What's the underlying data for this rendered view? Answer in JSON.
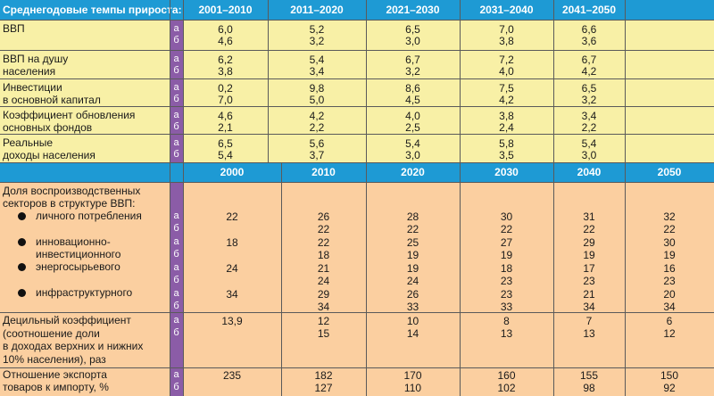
{
  "colors": {
    "header": "#1E9AD4",
    "yellow": "#F8F0A6",
    "peach": "#FBCFA0",
    "ab": "#8B5CA7"
  },
  "header1": {
    "label": "Среднегодовые темпы прироста:",
    "periods": [
      "2001–2010",
      "2011–2020",
      "2021–2030",
      "2031–2040",
      "2041–2050"
    ]
  },
  "growth_rows": [
    {
      "label": [
        "ВВП"
      ],
      "a": [
        "6,0",
        "5,2",
        "6,5",
        "7,0",
        "6,6"
      ],
      "b": [
        "4,6",
        "3,2",
        "3,0",
        "3,8",
        "3,6"
      ]
    },
    {
      "label": [
        "ВВП на душу",
        "населения"
      ],
      "a": [
        "6,2",
        "5,4",
        "6,7",
        "7,2",
        "6,7"
      ],
      "b": [
        "3,8",
        "3,4",
        "3,2",
        "4,0",
        "4,2"
      ]
    },
    {
      "label": [
        "Инвестиции",
        "в основной капитал"
      ],
      "a": [
        "0,2",
        "9,8",
        "8,6",
        "7,5",
        "6,5"
      ],
      "b": [
        "7,0",
        "5,0",
        "4,5",
        "4,2",
        "3,2"
      ]
    },
    {
      "label": [
        "Коэффициент обновления",
        "основных фондов"
      ],
      "a": [
        "4,6",
        "4,2",
        "4,0",
        "3,8",
        "3,4"
      ],
      "b": [
        "2,1",
        "2,2",
        "2,5",
        "2,4",
        "2,2"
      ]
    },
    {
      "label": [
        "Реальные",
        "доходы населения"
      ],
      "a": [
        "6,5",
        "5,6",
        "5,4",
        "5,8",
        "5,4"
      ],
      "b": [
        "5,4",
        "3,7",
        "3,0",
        "3,5",
        "3,0"
      ]
    }
  ],
  "ab_letters": {
    "a": "а",
    "b": "б"
  },
  "header2": {
    "years": [
      "2000",
      "2010",
      "2020",
      "2030",
      "2040",
      "2050"
    ]
  },
  "sectors": {
    "title": [
      "Доля воспроизводственных",
      "секторов в структуре ВВП:"
    ],
    "items": [
      {
        "label": [
          "личного потребления"
        ],
        "bullet": true,
        "a": [
          "22",
          "26",
          "28",
          "30",
          "31",
          "32"
        ],
        "b": [
          "",
          "22",
          "22",
          "22",
          "22",
          "22"
        ]
      },
      {
        "label": [
          "инновационно-",
          "инвестиционного"
        ],
        "bullet": true,
        "a": [
          "18",
          "22",
          "25",
          "27",
          "29",
          "30"
        ],
        "b": [
          "",
          "18",
          "19",
          "19",
          "19",
          "19"
        ]
      },
      {
        "label": [
          "энергосырьевого"
        ],
        "bullet": true,
        "a": [
          "24",
          "21",
          "19",
          "18",
          "17",
          "16"
        ],
        "b": [
          "",
          "24",
          "24",
          "23",
          "23",
          "23"
        ]
      },
      {
        "label": [
          "инфраструктурного"
        ],
        "bullet": true,
        "a": [
          "34",
          "29",
          "26",
          "23",
          "21",
          "20"
        ],
        "b": [
          "",
          "34",
          "33",
          "33",
          "34",
          "34"
        ]
      }
    ]
  },
  "decile": {
    "label": [
      "Децильный коэффициент",
      "(соотношение доли",
      "в доходах верхних и нижних",
      "10% населения), раз"
    ],
    "a": [
      "13,9",
      "12",
      "10",
      "8",
      "7",
      "6"
    ],
    "b": [
      "",
      "15",
      "14",
      "13",
      "13",
      "12"
    ]
  },
  "export": {
    "label": [
      "Отношение экспорта",
      "товаров к импорту, %"
    ],
    "a": [
      "235",
      "182",
      "170",
      "160",
      "155",
      "150"
    ],
    "b": [
      "",
      "127",
      "110",
      "102",
      "98",
      "92"
    ]
  }
}
